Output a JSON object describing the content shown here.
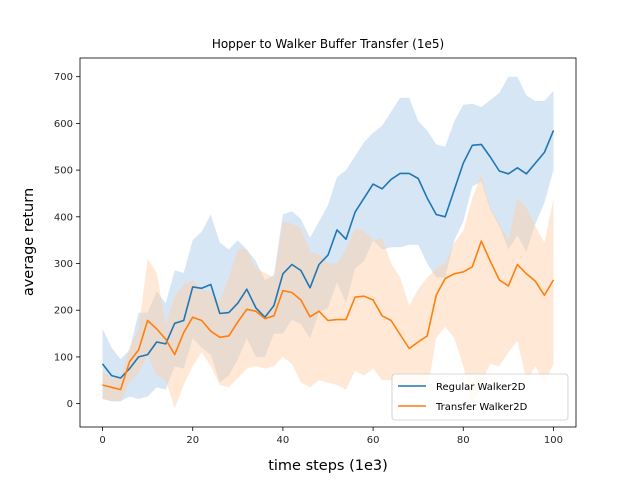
{
  "chart_data": {
    "type": "line",
    "title": "Hopper to Walker Buffer Transfer (1e5)",
    "xlabel": "time steps (1e3)",
    "ylabel": "average return",
    "xlim": [
      -5,
      105
    ],
    "ylim": [
      -50,
      740
    ],
    "xticks": [
      0,
      20,
      40,
      60,
      80,
      100
    ],
    "yticks": [
      0,
      100,
      200,
      300,
      400,
      500,
      600,
      700
    ],
    "grid": false,
    "legend_position": "lower-right",
    "x": [
      0,
      2,
      4,
      6,
      8,
      10,
      12,
      14,
      16,
      18,
      20,
      22,
      24,
      26,
      28,
      30,
      32,
      34,
      36,
      38,
      40,
      42,
      44,
      46,
      48,
      50,
      52,
      54,
      56,
      58,
      60,
      62,
      64,
      66,
      68,
      70,
      72,
      74,
      76,
      78,
      80,
      82,
      84,
      86,
      88,
      90,
      92,
      94,
      96,
      98,
      100
    ],
    "series": [
      {
        "name": "Regular Walker2D",
        "color": "#1f77b4",
        "band_color": "#a6c8e6",
        "values": [
          85,
          60,
          55,
          75,
          100,
          105,
          132,
          128,
          172,
          178,
          250,
          247,
          255,
          193,
          195,
          215,
          245,
          205,
          185,
          210,
          278,
          298,
          285,
          248,
          298,
          318,
          372,
          352,
          410,
          440,
          470,
          460,
          480,
          493,
          493,
          482,
          440,
          405,
          400,
          458,
          515,
          553,
          555,
          528,
          498,
          492,
          505,
          492,
          515,
          538,
          585
        ],
        "upper": [
          160,
          120,
          95,
          115,
          195,
          195,
          240,
          215,
          285,
          280,
          350,
          368,
          405,
          345,
          330,
          350,
          330,
          305,
          265,
          275,
          405,
          412,
          395,
          355,
          390,
          425,
          485,
          500,
          530,
          560,
          580,
          595,
          625,
          655,
          655,
          605,
          585,
          555,
          550,
          605,
          640,
          642,
          635,
          650,
          665,
          700,
          700,
          660,
          648,
          648,
          670
        ],
        "lower": [
          10,
          5,
          5,
          15,
          10,
          15,
          35,
          30,
          80,
          75,
          140,
          120,
          105,
          45,
          60,
          95,
          140,
          100,
          100,
          150,
          150,
          180,
          170,
          140,
          195,
          205,
          260,
          215,
          290,
          305,
          350,
          330,
          335,
          335,
          340,
          340,
          300,
          270,
          270,
          350,
          390,
          465,
          475,
          415,
          380,
          330,
          360,
          325,
          385,
          430,
          500
        ]
      },
      {
        "name": "Transfer Walker2D",
        "color": "#ff7f0e",
        "band_color": "#ffcfa3",
        "values": [
          40,
          35,
          30,
          90,
          115,
          178,
          160,
          138,
          105,
          152,
          185,
          178,
          155,
          142,
          145,
          175,
          202,
          198,
          182,
          188,
          242,
          238,
          222,
          186,
          198,
          178,
          180,
          180,
          228,
          230,
          222,
          188,
          178,
          148,
          118,
          132,
          145,
          232,
          268,
          278,
          282,
          293,
          348,
          305,
          265,
          252,
          298,
          278,
          262,
          232,
          265
        ],
        "upper": [
          70,
          55,
          55,
          120,
          160,
          310,
          280,
          170,
          230,
          255,
          265,
          245,
          240,
          220,
          270,
          330,
          330,
          290,
          280,
          270,
          390,
          385,
          375,
          325,
          320,
          300,
          300,
          330,
          375,
          370,
          350,
          355,
          300,
          270,
          210,
          245,
          270,
          290,
          300,
          345,
          370,
          440,
          490,
          420,
          385,
          350,
          440,
          420,
          380,
          345,
          440
        ],
        "lower": [
          10,
          5,
          5,
          45,
          65,
          105,
          60,
          50,
          -10,
          40,
          80,
          110,
          80,
          40,
          35,
          55,
          75,
          80,
          75,
          80,
          100,
          85,
          45,
          35,
          50,
          45,
          40,
          30,
          70,
          60,
          75,
          50,
          50,
          40,
          20,
          30,
          25,
          140,
          165,
          140,
          80,
          -5,
          45,
          85,
          80,
          110,
          135,
          50,
          80,
          40,
          85
        ]
      }
    ]
  }
}
